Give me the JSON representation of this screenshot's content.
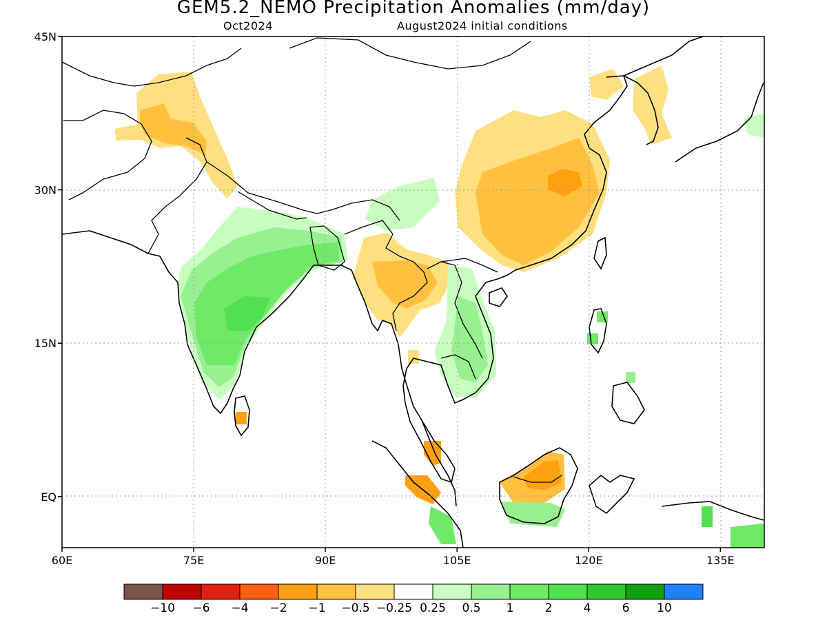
{
  "header": {
    "title": "GEM5.2_NEMO Precipitation Anomalies (mm/day)",
    "month": "Oct2024",
    "init": "August2024 initial conditions"
  },
  "map": {
    "lon_range": [
      60,
      140
    ],
    "lat_range": [
      -5,
      45
    ],
    "lat_ticks": [
      {
        "value": 45,
        "label": "45N"
      },
      {
        "value": 30,
        "label": "30N"
      },
      {
        "value": 15,
        "label": "15N"
      },
      {
        "value": 0,
        "label": "EQ"
      }
    ],
    "lon_ticks": [
      {
        "value": 60,
        "label": "60E"
      },
      {
        "value": 75,
        "label": "75E"
      },
      {
        "value": 90,
        "label": "90E"
      },
      {
        "value": 105,
        "label": "105E"
      },
      {
        "value": 120,
        "label": "120E"
      },
      {
        "value": 135,
        "label": "135E"
      }
    ],
    "grid": "dotted"
  },
  "colorbar": {
    "colors": [
      "#7a5548",
      "#c00000",
      "#e02010",
      "#ff6010",
      "#ffa010",
      "#ffc040",
      "#ffe080",
      "#ffffff",
      "#c8ffc0",
      "#98f090",
      "#70e868",
      "#50e050",
      "#30c830",
      "#10a010",
      "#2080ff"
    ],
    "labels": [
      "−10",
      "−6",
      "−4",
      "−2",
      "−1",
      "−0.5",
      "−0.25",
      "0.25",
      "0.5",
      "1",
      "2",
      "4",
      "6",
      "10"
    ]
  }
}
